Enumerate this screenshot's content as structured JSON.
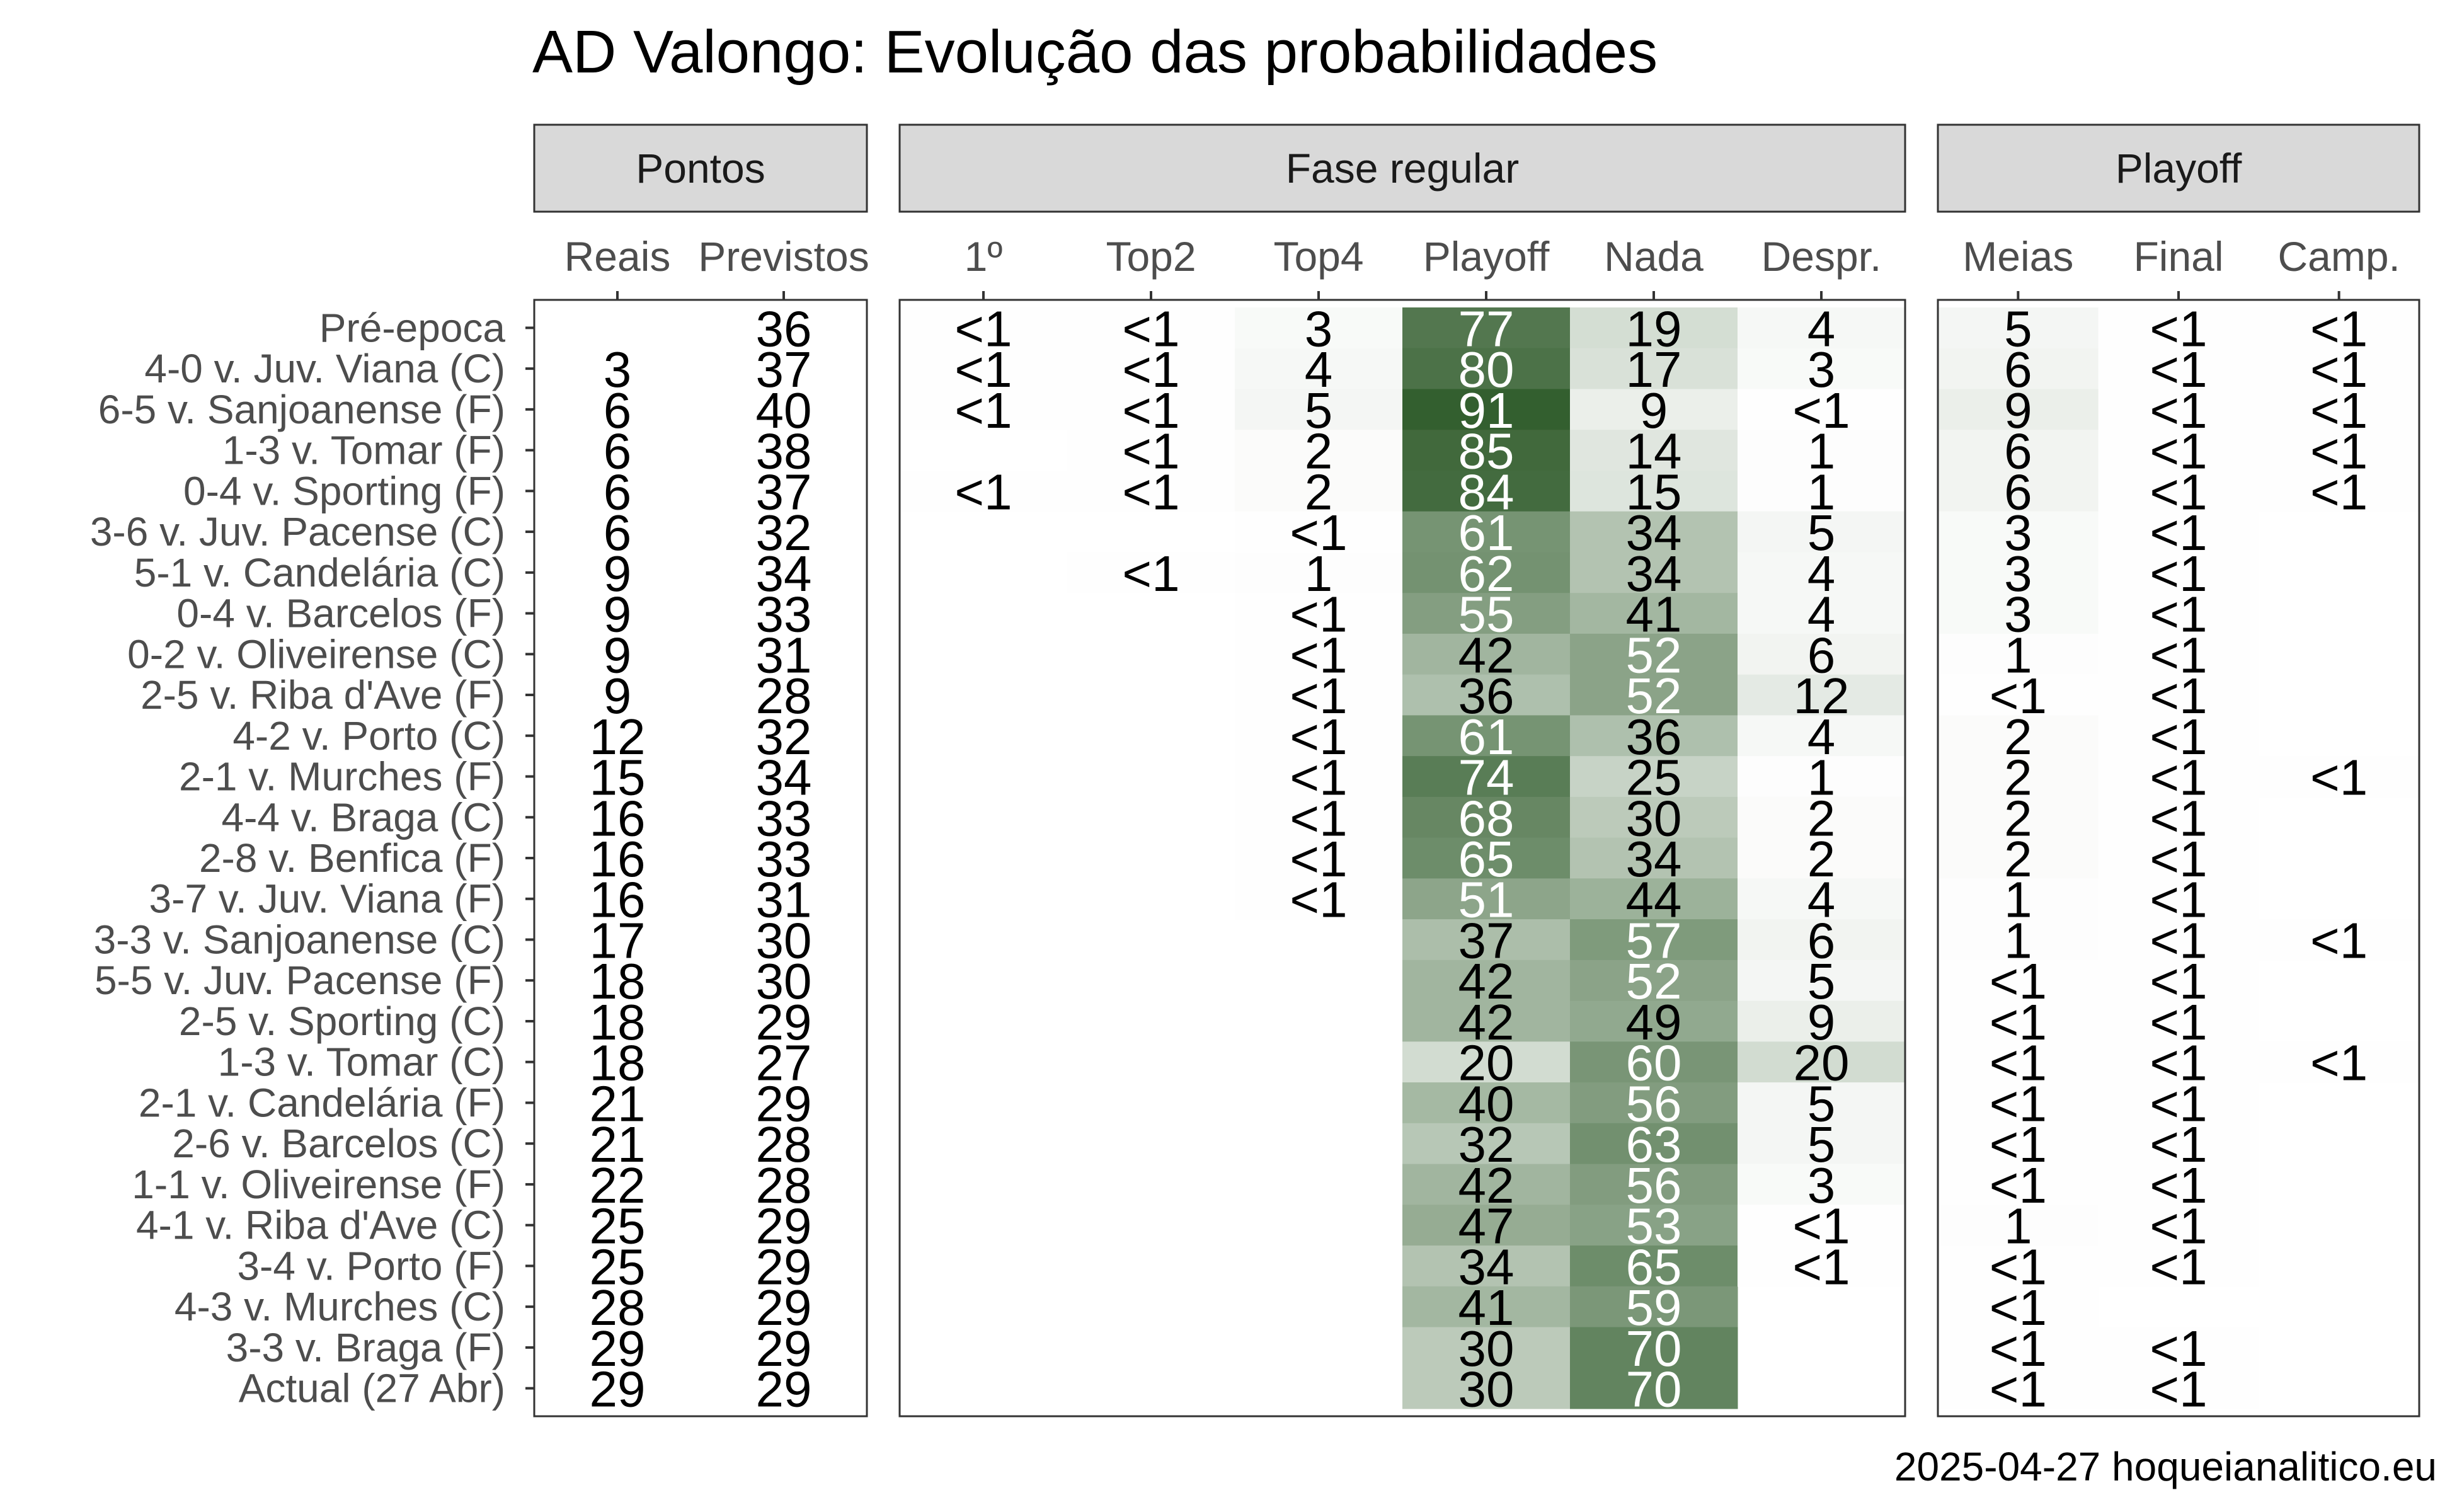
{
  "title": "AD Valongo: Evolução das probabilidades",
  "caption": "2025-04-27 hoqueianalitico.eu",
  "colors": {
    "heat_high": "#1f4f1a",
    "heat_low": "#ffffff",
    "strip_fill": "#d9d9d9",
    "panel_border": "#333333",
    "text_dark": "#000000",
    "text_light": "#ffffff"
  },
  "chart_data": {
    "type": "heatmap",
    "rows": [
      "Pré-epoca",
      "4-0 v. Juv. Viana (C)",
      "6-5 v. Sanjoanense (F)",
      "1-3 v. Tomar (F)",
      "0-4 v. Sporting (F)",
      "3-6 v. Juv. Pacense (C)",
      "5-1 v. Candelária (C)",
      "0-4 v. Barcelos (F)",
      "0-2 v. Oliveirense (C)",
      "2-5 v. Riba d'Ave (F)",
      "4-2 v. Porto (C)",
      "2-1 v. Murches (F)",
      "4-4 v. Braga (C)",
      "2-8 v. Benfica (F)",
      "3-7 v. Juv. Viana (F)",
      "3-3 v. Sanjoanense (C)",
      "5-5 v. Juv. Pacense (F)",
      "2-5 v. Sporting (C)",
      "1-3 v. Tomar (C)",
      "2-1 v. Candelária (F)",
      "2-6 v. Barcelos (C)",
      "1-1 v. Oliveirense (F)",
      "4-1 v. Riba d'Ave (C)",
      "3-4 v. Porto (F)",
      "4-3 v. Murches (C)",
      "3-3 v. Braga (F)",
      "Actual (27 Abr)"
    ],
    "panels": [
      {
        "name": "Pontos",
        "shaded": false,
        "columns": [
          {
            "name": "Reais",
            "values": [
              "",
              "3",
              "6",
              "6",
              "6",
              "6",
              "9",
              "9",
              "9",
              "9",
              "12",
              "15",
              "16",
              "16",
              "16",
              "17",
              "18",
              "18",
              "18",
              "21",
              "21",
              "22",
              "25",
              "25",
              "28",
              "29",
              "29"
            ]
          },
          {
            "name": "Previstos",
            "values": [
              "36",
              "37",
              "40",
              "38",
              "37",
              "32",
              "34",
              "33",
              "31",
              "28",
              "32",
              "34",
              "33",
              "33",
              "31",
              "30",
              "30",
              "29",
              "27",
              "29",
              "28",
              "28",
              "29",
              "29",
              "29",
              "29",
              "29"
            ]
          }
        ]
      },
      {
        "name": "Fase regular",
        "shaded": true,
        "columns": [
          {
            "name": "1º",
            "values": [
              "<1",
              "<1",
              "<1",
              "",
              "<1",
              "",
              "",
              "",
              "",
              "",
              "",
              "",
              "",
              "",
              "",
              "",
              "",
              "",
              "",
              "",
              "",
              "",
              "",
              "",
              "",
              "",
              ""
            ]
          },
          {
            "name": "Top2",
            "values": [
              "<1",
              "<1",
              "<1",
              "<1",
              "<1",
              "",
              "<1",
              "",
              "",
              "",
              "",
              "",
              "",
              "",
              "",
              "",
              "",
              "",
              "",
              "",
              "",
              "",
              "",
              "",
              "",
              "",
              ""
            ]
          },
          {
            "name": "Top4",
            "values": [
              "3",
              "4",
              "5",
              "2",
              "2",
              "<1",
              "1",
              "<1",
              "<1",
              "<1",
              "<1",
              "<1",
              "<1",
              "<1",
              "<1",
              "",
              "",
              "",
              "",
              "",
              "",
              "",
              "",
              "",
              "",
              "",
              ""
            ]
          },
          {
            "name": "Playoff",
            "values": [
              "77",
              "80",
              "91",
              "85",
              "84",
              "61",
              "62",
              "55",
              "42",
              "36",
              "61",
              "74",
              "68",
              "65",
              "51",
              "37",
              "42",
              "42",
              "20",
              "40",
              "32",
              "42",
              "47",
              "34",
              "41",
              "30",
              "30"
            ]
          },
          {
            "name": "Nada",
            "values": [
              "19",
              "17",
              "9",
              "14",
              "15",
              "34",
              "34",
              "41",
              "52",
              "52",
              "36",
              "25",
              "30",
              "34",
              "44",
              "57",
              "52",
              "49",
              "60",
              "56",
              "63",
              "56",
              "53",
              "65",
              "59",
              "70",
              "70"
            ]
          },
          {
            "name": "Despr.",
            "values": [
              "4",
              "3",
              "<1",
              "1",
              "1",
              "5",
              "4",
              "4",
              "6",
              "12",
              "4",
              "1",
              "2",
              "2",
              "4",
              "6",
              "5",
              "9",
              "20",
              "5",
              "5",
              "3",
              "<1",
              "<1",
              "",
              "",
              ""
            ]
          }
        ]
      },
      {
        "name": "Playoff",
        "shaded": true,
        "columns": [
          {
            "name": "Meias",
            "values": [
              "5",
              "6",
              "9",
              "6",
              "6",
              "3",
              "3",
              "3",
              "1",
              "<1",
              "2",
              "2",
              "2",
              "2",
              "1",
              "1",
              "<1",
              "<1",
              "<1",
              "<1",
              "<1",
              "<1",
              "1",
              "<1",
              "<1",
              "<1",
              "<1"
            ]
          },
          {
            "name": "Final",
            "values": [
              "<1",
              "<1",
              "<1",
              "<1",
              "<1",
              "<1",
              "<1",
              "<1",
              "<1",
              "<1",
              "<1",
              "<1",
              "<1",
              "<1",
              "<1",
              "<1",
              "<1",
              "<1",
              "<1",
              "<1",
              "<1",
              "<1",
              "<1",
              "<1",
              "",
              "<1",
              "<1"
            ]
          },
          {
            "name": "Camp.",
            "values": [
              "<1",
              "<1",
              "<1",
              "<1",
              "<1",
              "",
              "",
              "",
              "",
              "",
              "",
              "<1",
              "",
              "",
              "",
              "<1",
              "",
              "",
              "<1",
              "",
              "",
              "",
              "",
              "",
              "",
              "",
              ""
            ]
          }
        ]
      }
    ]
  }
}
